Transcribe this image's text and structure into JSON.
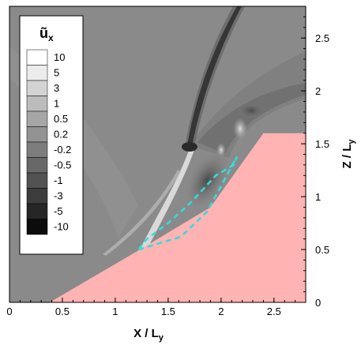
{
  "chart_data": {
    "type": "contour",
    "title": "",
    "xlabel": "X / L",
    "xlabel_sub": "y",
    "ylabel": "Z / L",
    "ylabel_sub": "y",
    "xlim": [
      0,
      2.8
    ],
    "ylim": [
      0,
      2.8
    ],
    "x_ticks": [
      0,
      0.5,
      1,
      1.5,
      2,
      2.5
    ],
    "x_tick_labels": [
      "0",
      "0.5",
      "1",
      "1.5",
      "2",
      "2.5"
    ],
    "y_ticks": [
      0,
      0.5,
      1,
      1.5,
      2,
      2.5
    ],
    "y_tick_labels": [
      "0",
      "0.5",
      "1",
      "1.5",
      "2",
      "2.5"
    ],
    "y_axis_side": "right",
    "legend": {
      "title": "ũ",
      "title_sub": "x",
      "placement": "top-left",
      "levels": [
        {
          "label": "10",
          "color": "#ffffff"
        },
        {
          "label": "5",
          "color": "#ececec"
        },
        {
          "label": "3",
          "color": "#d3d3d3"
        },
        {
          "label": "1",
          "color": "#bcbcbc"
        },
        {
          "label": "0.5",
          "color": "#a6a6a6"
        },
        {
          "label": "0.2",
          "color": "#939393"
        },
        {
          "label": "-0.2",
          "color": "#7d7d7d"
        },
        {
          "label": "-0.5",
          "color": "#686868"
        },
        {
          "label": "-1",
          "color": "#525252"
        },
        {
          "label": "-3",
          "color": "#3c3c3c"
        },
        {
          "label": "-5",
          "color": "#262626"
        },
        {
          "label": "-10",
          "color": "#0c0c0c"
        }
      ]
    },
    "background_level_color": "#8a8a8a",
    "wall_color": "#ffb3b3",
    "wall_boundary": [
      [
        0.38,
        0
      ],
      [
        1.2,
        0.48
      ],
      [
        1.9,
        0.9
      ],
      [
        2.4,
        1.6
      ],
      [
        2.8,
        1.6
      ],
      [
        2.8,
        0
      ]
    ],
    "cyan_contour_color": "#33dddd",
    "cyan_contour": [
      [
        1.22,
        0.5
      ],
      [
        1.62,
        0.62
      ],
      [
        1.87,
        0.86
      ],
      [
        2.15,
        1.38
      ],
      [
        2.12,
        1.3
      ],
      [
        1.95,
        1.2
      ],
      [
        1.72,
        0.95
      ],
      [
        1.5,
        0.75
      ],
      [
        1.3,
        0.6
      ],
      [
        1.22,
        0.5
      ]
    ]
  }
}
